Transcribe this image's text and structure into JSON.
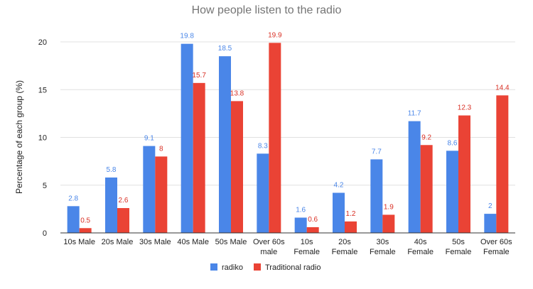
{
  "chart_data": {
    "type": "bar",
    "title": "How people listen to the radio",
    "xlabel": "",
    "ylabel": "Percentage of each group (%)",
    "ylim": [
      0,
      20
    ],
    "yticks": [
      0,
      5,
      10,
      15,
      20
    ],
    "grid": true,
    "legend_position": "bottom",
    "categories": [
      [
        "10s Male"
      ],
      [
        "20s Male"
      ],
      [
        "30s Male"
      ],
      [
        "40s Male"
      ],
      [
        "50s Male"
      ],
      [
        "Over 60s",
        "male"
      ],
      [
        "10s",
        "Female"
      ],
      [
        "20s",
        "Female"
      ],
      [
        "30s",
        "Female"
      ],
      [
        "40s",
        "Female"
      ],
      [
        "50s",
        "Female"
      ],
      [
        "Over 60s",
        "Female"
      ]
    ],
    "series": [
      {
        "name": "radiko",
        "color": "#4a86e8",
        "label_color": "#4a86e8",
        "values": [
          2.8,
          5.8,
          9.1,
          19.8,
          18.5,
          8.3,
          1.6,
          4.2,
          7.7,
          11.7,
          8.6,
          2
        ],
        "labels": [
          "2.8",
          "5.8",
          "9.1",
          "19.8",
          "18.5",
          "8.3",
          "1.6",
          "4.2",
          "7.7",
          "11.7",
          "8.6",
          "2"
        ]
      },
      {
        "name": "Traditional radio",
        "color": "#ea4335",
        "label_color": "#d93025",
        "values": [
          0.5,
          2.6,
          8,
          15.7,
          13.8,
          19.9,
          0.6,
          1.2,
          1.9,
          9.2,
          12.3,
          14.4
        ],
        "labels": [
          "0.5",
          "2.6",
          "8",
          "15.7",
          "13.8",
          "19.9",
          "0.6",
          "1.2",
          "1.9",
          "9.2",
          "12.3",
          "14.4"
        ]
      }
    ]
  }
}
